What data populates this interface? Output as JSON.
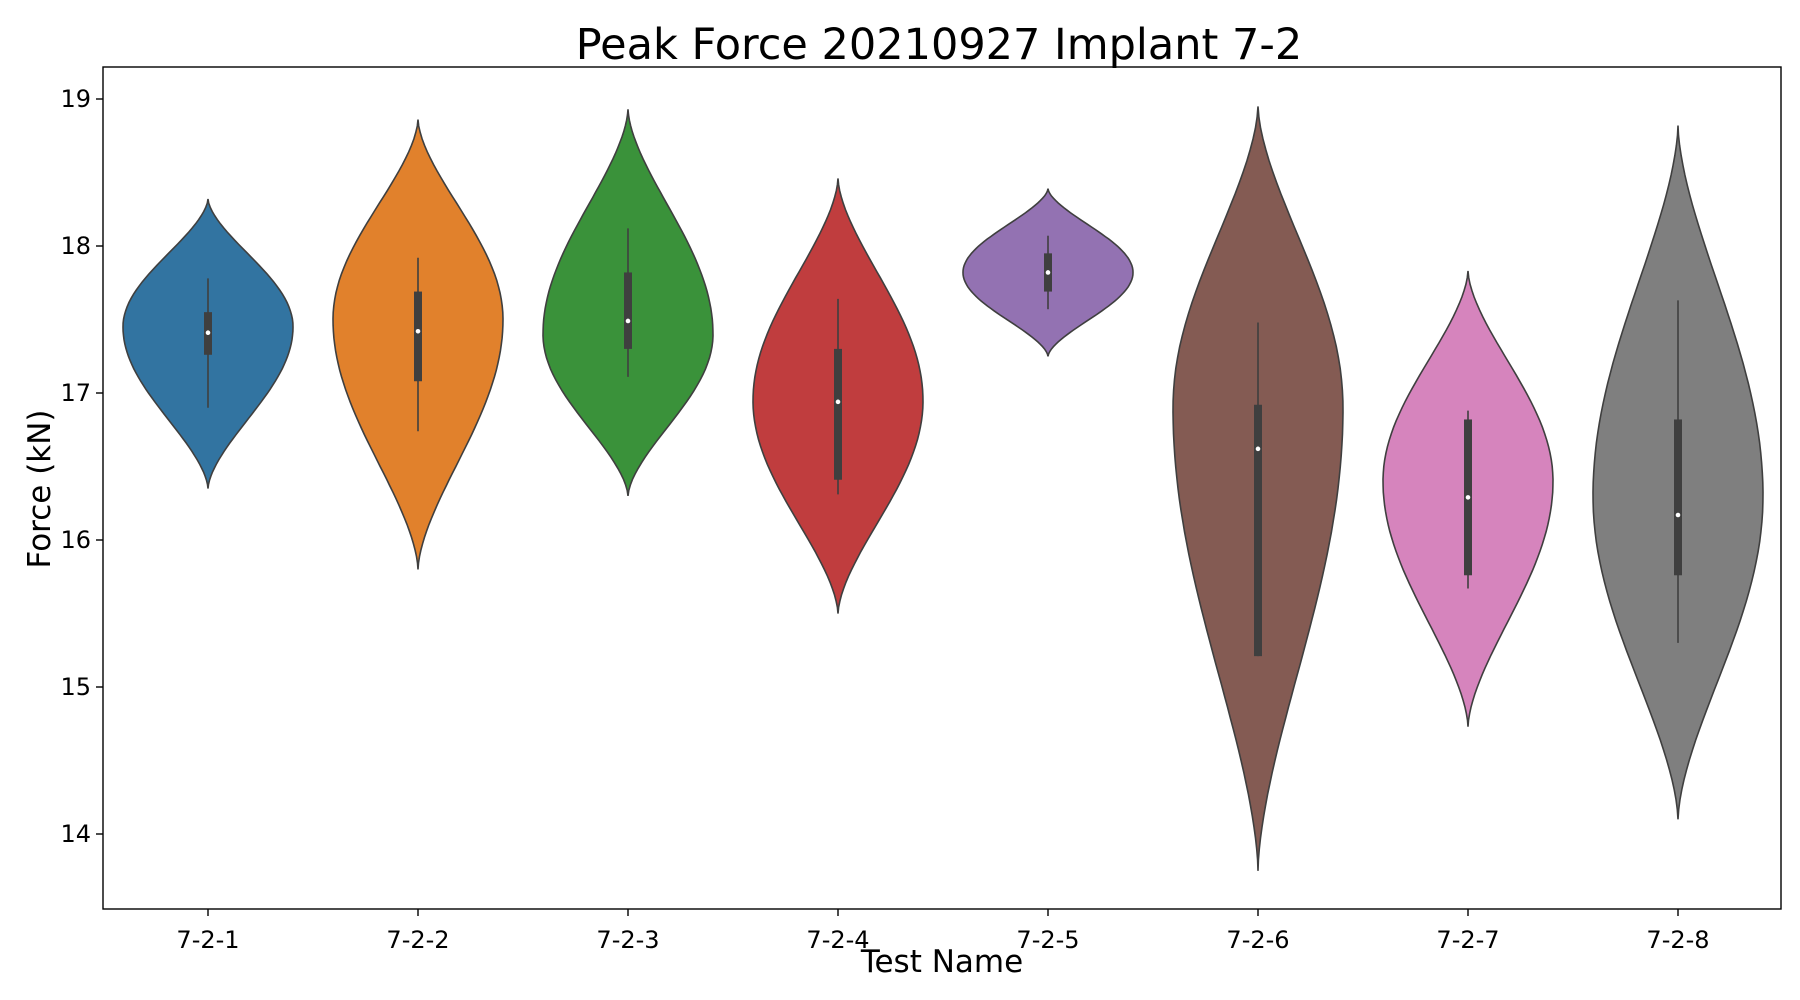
{
  "chart_data": {
    "type": "violin",
    "title": "Peak Force 20210927 Implant 7-2",
    "xlabel": "Test Name",
    "ylabel": "Force (kN)",
    "ylim": [
      13.5,
      19.2
    ],
    "yticks": [
      14,
      15,
      16,
      17,
      18,
      19
    ],
    "ytick_labels": [
      "14",
      "15",
      "16",
      "17",
      "18",
      "19"
    ],
    "grid": false,
    "legend": "none",
    "categories": [
      "7-2-1",
      "7-2-2",
      "7-2-3",
      "7-2-4",
      "7-2-5",
      "7-2-6",
      "7-2-7",
      "7-2-8"
    ],
    "colors": [
      "#3274a1",
      "#e1812c",
      "#3a923a",
      "#c03d3e",
      "#9372b2",
      "#845b53",
      "#d684bd",
      "#7f7f7f"
    ],
    "series": [
      {
        "min": 16.35,
        "max": 18.32,
        "q1": 17.26,
        "median": 17.41,
        "q3": 17.55,
        "whisker_low": 16.9,
        "whisker_high": 17.78,
        "max_width_at": 17.45
      },
      {
        "min": 15.8,
        "max": 18.86,
        "q1": 17.08,
        "median": 17.42,
        "q3": 17.69,
        "whisker_low": 16.74,
        "whisker_high": 17.92,
        "max_width_at": 17.5
      },
      {
        "min": 16.3,
        "max": 18.93,
        "q1": 17.3,
        "median": 17.49,
        "q3": 17.82,
        "whisker_low": 17.11,
        "whisker_high": 18.12,
        "max_width_at": 17.4
      },
      {
        "min": 15.5,
        "max": 18.46,
        "q1": 16.41,
        "median": 16.94,
        "q3": 17.3,
        "whisker_low": 16.31,
        "whisker_high": 17.64,
        "max_width_at": 16.95
      },
      {
        "min": 17.25,
        "max": 18.39,
        "q1": 17.69,
        "median": 17.82,
        "q3": 17.95,
        "whisker_low": 17.57,
        "whisker_high": 18.07,
        "max_width_at": 17.82
      },
      {
        "min": 13.75,
        "max": 18.95,
        "q1": 15.21,
        "median": 16.62,
        "q3": 16.92,
        "whisker_low": 15.21,
        "whisker_high": 17.48,
        "max_width_at": 16.9
      },
      {
        "min": 14.73,
        "max": 17.83,
        "q1": 15.76,
        "median": 16.29,
        "q3": 16.82,
        "whisker_low": 15.67,
        "whisker_high": 16.88,
        "max_width_at": 16.4
      },
      {
        "min": 14.1,
        "max": 18.82,
        "q1": 15.76,
        "median": 16.17,
        "q3": 16.82,
        "whisker_low": 15.3,
        "whisker_high": 17.63,
        "max_width_at": 16.3
      }
    ]
  }
}
